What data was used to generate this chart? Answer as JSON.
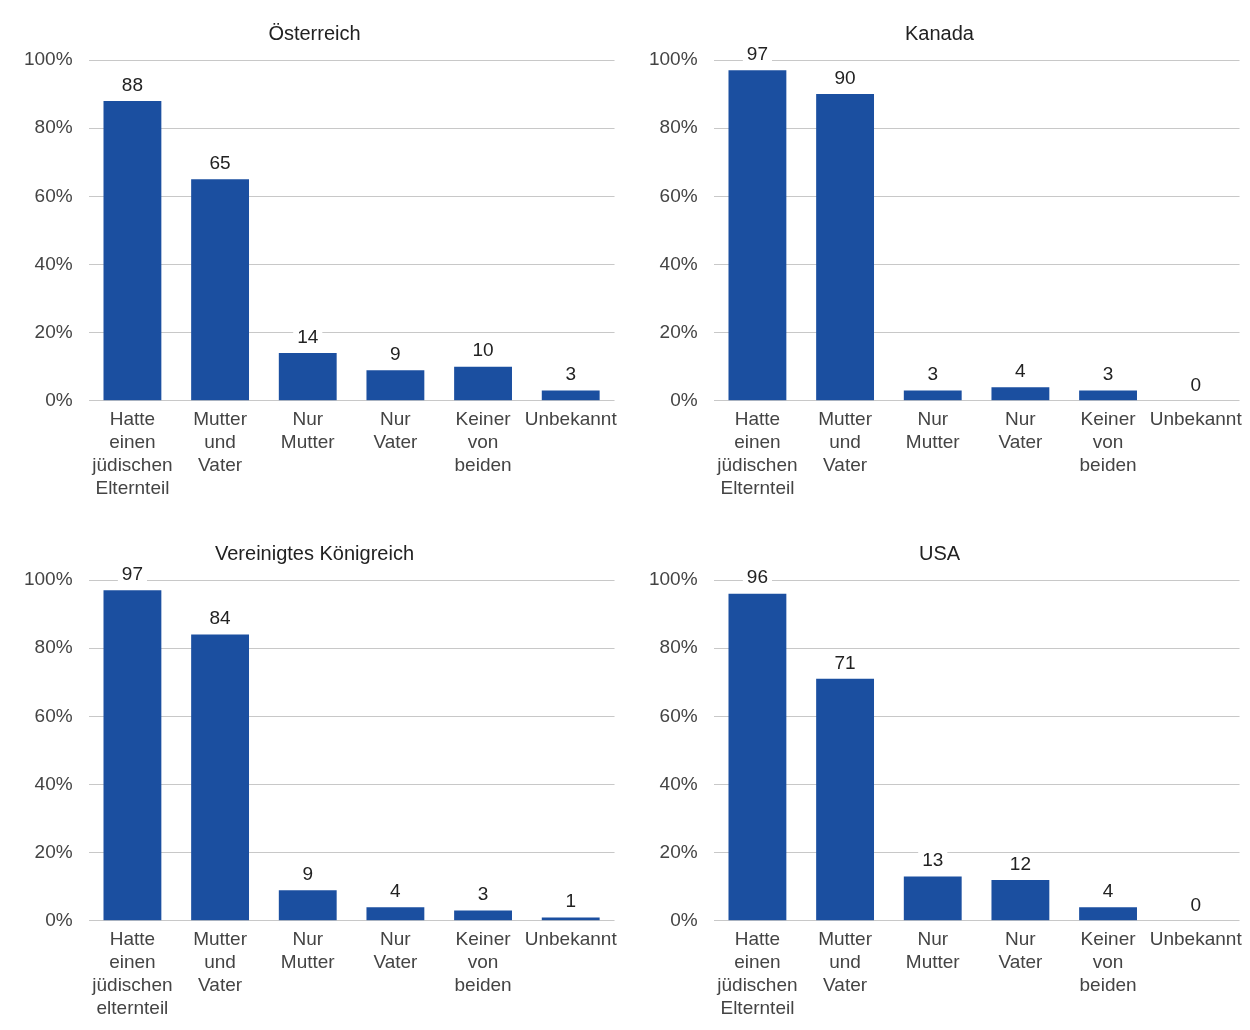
{
  "chart_data": [
    {
      "type": "bar",
      "title": "Österreich",
      "categories": [
        "Hatte einen jüdischen Elternteil",
        "Mutter und Vater",
        "Nur Mutter",
        "Nur Vater",
        "Keiner von beiden",
        "Unbekannt"
      ],
      "values": [
        88,
        65,
        14,
        9,
        10,
        3
      ],
      "color": "#1b4fa0",
      "ylim": [
        0,
        100
      ],
      "yticks": [
        {
          "value": 0,
          "label": "0%"
        },
        {
          "value": 20,
          "label": "20%"
        },
        {
          "value": 40,
          "label": "40%"
        },
        {
          "value": 60,
          "label": "60%"
        },
        {
          "value": 80,
          "label": "80%"
        },
        {
          "value": 100,
          "label": "100%"
        }
      ],
      "grid": "y",
      "data_labels": true,
      "legend": false
    },
    {
      "type": "bar",
      "title": "Kanada",
      "categories": [
        "Hatte einen jüdischen Elternteil",
        "Mutter und Vater",
        "Nur Mutter",
        "Nur Vater",
        "Keiner von beiden",
        "Unbekannt"
      ],
      "values": [
        97,
        90,
        3,
        4,
        3,
        0
      ],
      "color": "#1b4fa0",
      "ylim": [
        0,
        100
      ],
      "yticks": [
        {
          "value": 0,
          "label": "0%"
        },
        {
          "value": 20,
          "label": "20%"
        },
        {
          "value": 40,
          "label": "40%"
        },
        {
          "value": 60,
          "label": "60%"
        },
        {
          "value": 80,
          "label": "80%"
        },
        {
          "value": 100,
          "label": "100%"
        }
      ],
      "grid": "y",
      "data_labels": true,
      "legend": false
    },
    {
      "type": "bar",
      "title": "Vereinigtes Königreich",
      "categories": [
        "Hatte einen jüdischen elternteil",
        "Mutter und Vater",
        "Nur Mutter",
        "Nur Vater",
        "Keiner von beiden",
        "Unbekannt"
      ],
      "values": [
        97,
        84,
        9,
        4,
        3,
        1
      ],
      "color": "#1b4fa0",
      "ylim": [
        0,
        100
      ],
      "yticks": [
        {
          "value": 0,
          "label": "0%"
        },
        {
          "value": 20,
          "label": "20%"
        },
        {
          "value": 40,
          "label": "40%"
        },
        {
          "value": 60,
          "label": "60%"
        },
        {
          "value": 80,
          "label": "80%"
        },
        {
          "value": 100,
          "label": "100%"
        }
      ],
      "grid": "y",
      "data_labels": true,
      "legend": false
    },
    {
      "type": "bar",
      "title": "USA",
      "categories": [
        "Hatte einen jüdischen Elternteil",
        "Mutter und Vater",
        "Nur Mutter",
        "Nur Vater",
        "Keiner von beiden",
        "Unbekannt"
      ],
      "values": [
        96,
        71,
        13,
        12,
        4,
        0
      ],
      "color": "#1b4fa0",
      "ylim": [
        0,
        100
      ],
      "yticks": [
        {
          "value": 0,
          "label": "0%"
        },
        {
          "value": 20,
          "label": "20%"
        },
        {
          "value": 40,
          "label": "40%"
        },
        {
          "value": 60,
          "label": "60%"
        },
        {
          "value": 80,
          "label": "80%"
        },
        {
          "value": 100,
          "label": "100%"
        }
      ],
      "grid": "y",
      "data_labels": true,
      "legend": false
    }
  ]
}
